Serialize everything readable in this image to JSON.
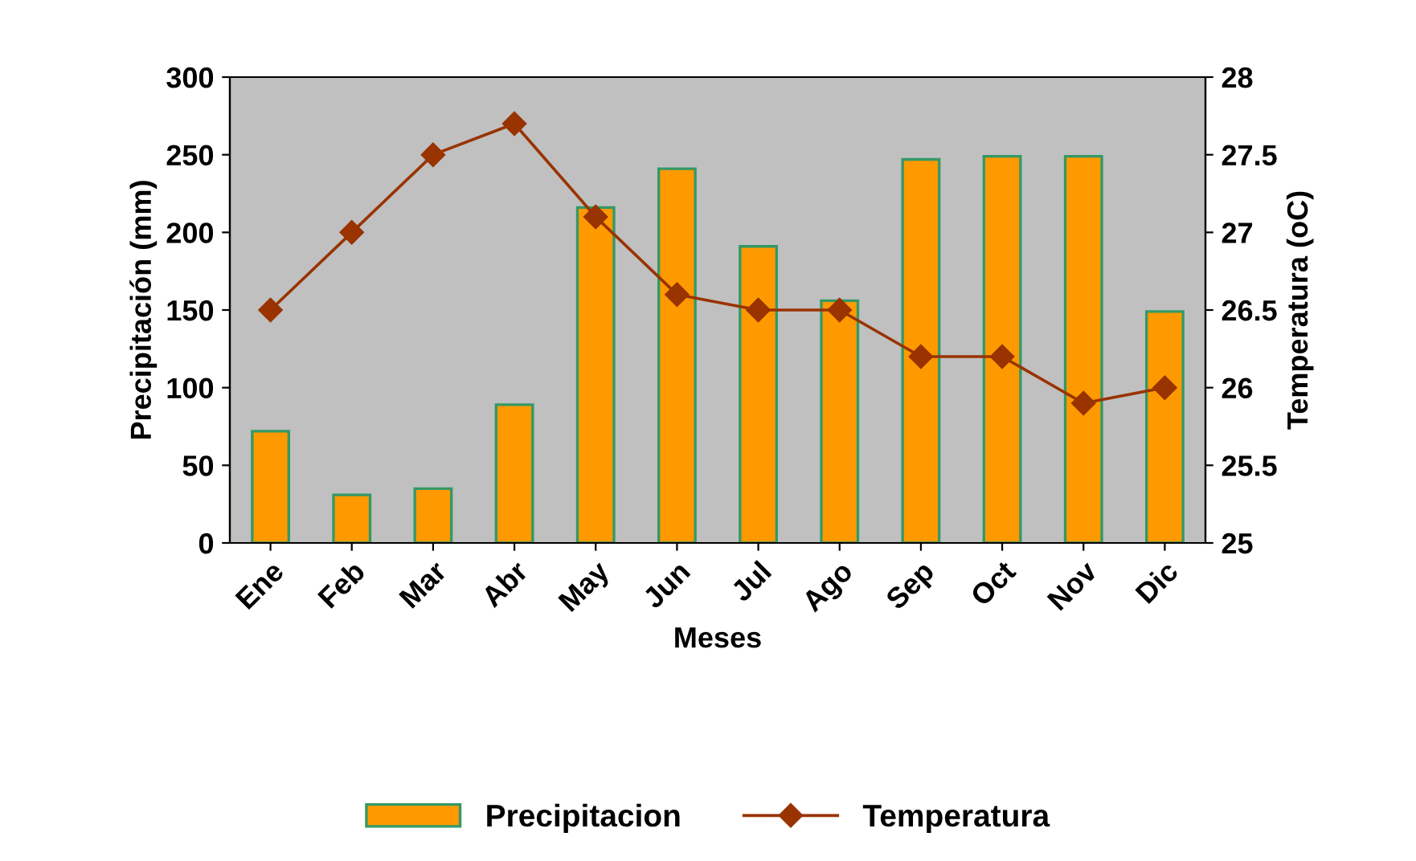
{
  "chart_data": {
    "type": "bar",
    "xlabel": "Meses",
    "ylabel": "Precipitación (mm)",
    "y2label": "Temperatura (oC)",
    "categories": [
      "Ene",
      "Feb",
      "Mar",
      "Abr",
      "May",
      "Jun",
      "Jul",
      "Ago",
      "Sep",
      "Oct",
      "Nov",
      "Dic"
    ],
    "series": [
      {
        "name": "Precipitacion",
        "color": "#ff9900",
        "values": [
          72,
          31,
          35,
          89,
          216,
          241,
          191,
          156,
          247,
          249,
          249,
          149
        ]
      },
      {
        "name": "Temperatura",
        "type": "line",
        "axis": "y2",
        "color": "#993300",
        "marker": "diamond",
        "values": [
          26.5,
          27,
          27.5,
          27.7,
          27.1,
          26.6,
          26.5,
          26.5,
          26.2,
          26.2,
          25.9,
          26
        ]
      }
    ],
    "ylim": [
      0,
      300
    ],
    "yticks": [
      0,
      50,
      100,
      150,
      200,
      250,
      300
    ],
    "y2lim": [
      25,
      28
    ],
    "y2ticks": [
      25,
      25.5,
      26,
      26.5,
      27,
      27.5,
      28
    ],
    "grid": false,
    "legend": "bottom"
  }
}
